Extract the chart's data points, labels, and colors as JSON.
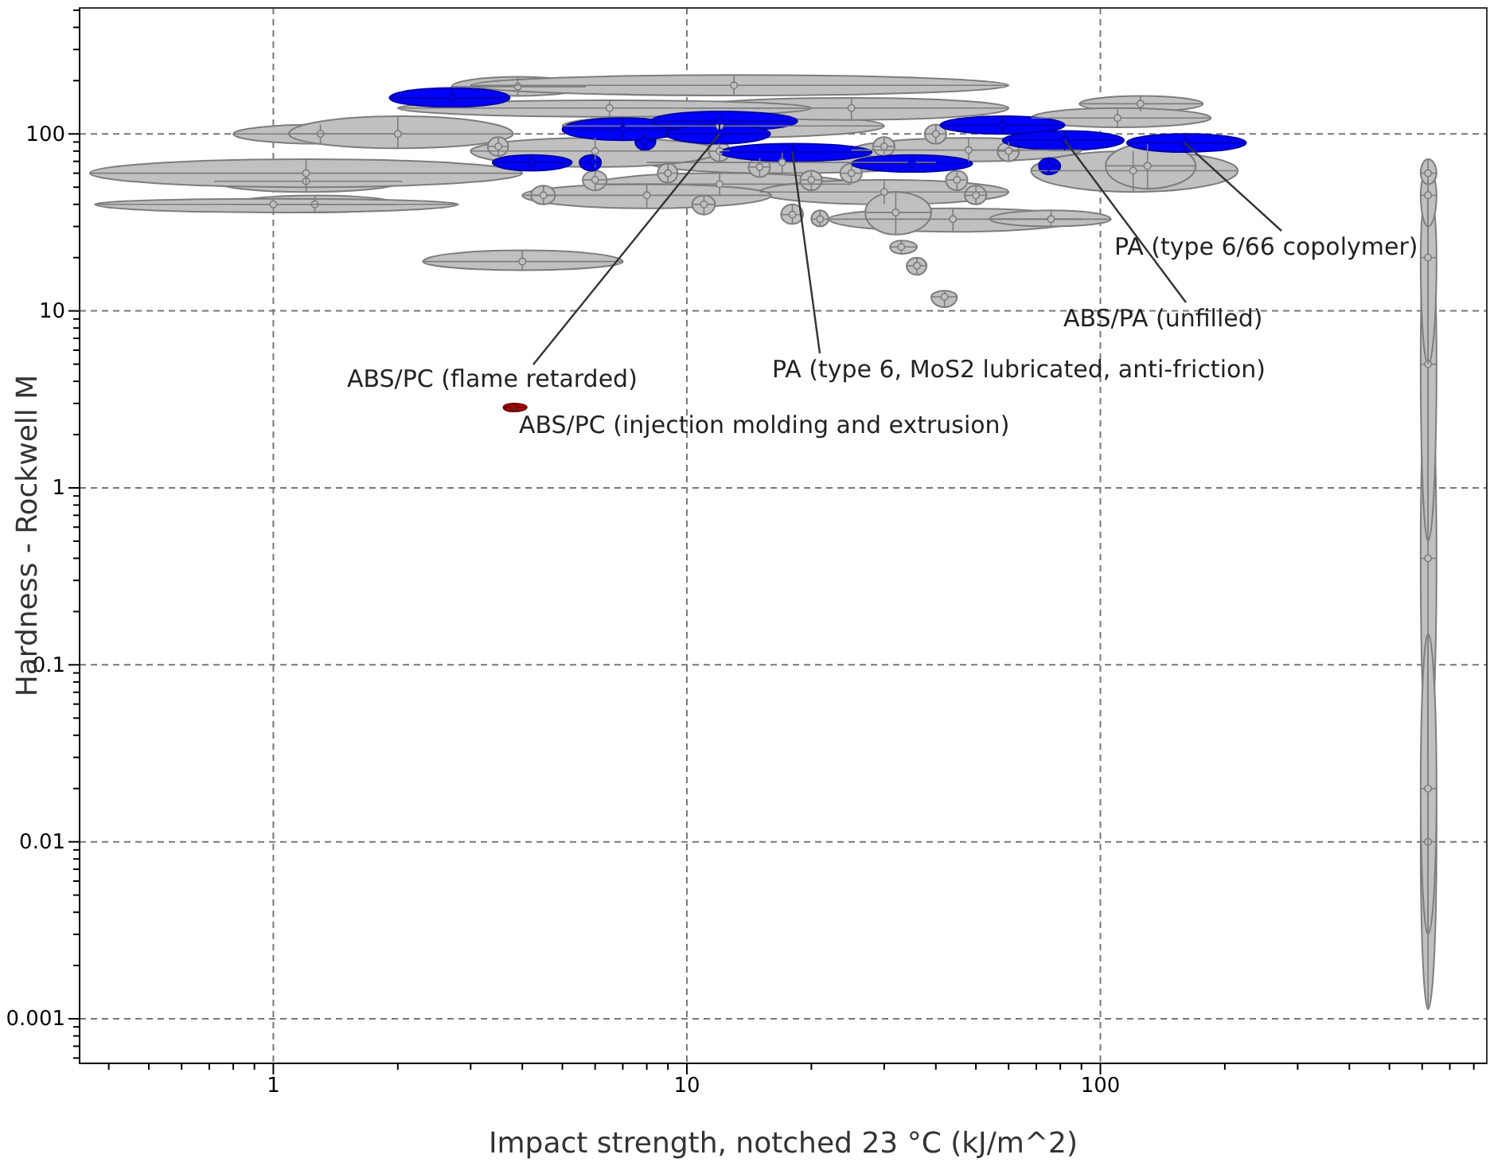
{
  "chart_data": {
    "type": "scatter",
    "xlabel": "Impact strength, notched 23 °C (kJ/m^2)",
    "ylabel": "Hardness - Rockwell M",
    "log": "xy",
    "grid": true,
    "marker": "circle",
    "xlim": [
      0.34,
      860
    ],
    "ylim": [
      0.00056,
      515
    ],
    "xticks": [
      {
        "value": 0.4,
        "label": null
      },
      {
        "value": 0.5,
        "label": null
      },
      {
        "value": 0.6,
        "label": null
      },
      {
        "value": 0.7,
        "label": null
      },
      {
        "value": 0.8,
        "label": null
      },
      {
        "value": 0.9,
        "label": null
      },
      1,
      {
        "value": 2,
        "label": null
      },
      {
        "value": 3,
        "label": null
      },
      {
        "value": 4,
        "label": null
      },
      {
        "value": 5,
        "label": null
      },
      {
        "value": 6,
        "label": null
      },
      {
        "value": 7,
        "label": null
      },
      {
        "value": 8,
        "label": null
      },
      {
        "value": 9,
        "label": null
      },
      10,
      {
        "value": 20,
        "label": null
      },
      {
        "value": 30,
        "label": null
      },
      {
        "value": 40,
        "label": null
      },
      {
        "value": 50,
        "label": null
      },
      {
        "value": 60,
        "label": null
      },
      {
        "value": 70,
        "label": null
      },
      {
        "value": 80,
        "label": null
      },
      {
        "value": 90,
        "label": null
      },
      100,
      {
        "value": 200,
        "label": null
      },
      {
        "value": 300,
        "label": null
      },
      {
        "value": 400,
        "label": null
      },
      {
        "value": 500,
        "label": null
      },
      {
        "value": 600,
        "label": null
      },
      {
        "value": 700,
        "label": null
      },
      {
        "value": 800,
        "label": null
      }
    ],
    "yticks": [
      {
        "value": 0.0006,
        "label": null
      },
      {
        "value": 0.0007,
        "label": null
      },
      {
        "value": 0.0008,
        "label": null
      },
      {
        "value": 0.0009,
        "label": null
      },
      0.001,
      {
        "value": 0.002,
        "label": null
      },
      {
        "value": 0.003,
        "label": null
      },
      {
        "value": 0.004,
        "label": null
      },
      {
        "value": 0.005,
        "label": null
      },
      {
        "value": 0.006,
        "label": null
      },
      {
        "value": 0.007,
        "label": null
      },
      {
        "value": 0.008,
        "label": null
      },
      {
        "value": 0.009,
        "label": null
      },
      0.01,
      {
        "value": 0.02,
        "label": null
      },
      {
        "value": 0.03,
        "label": null
      },
      {
        "value": 0.04,
        "label": null
      },
      {
        "value": 0.05,
        "label": null
      },
      {
        "value": 0.06,
        "label": null
      },
      {
        "value": 0.07,
        "label": null
      },
      {
        "value": 0.08,
        "label": null
      },
      {
        "value": 0.09,
        "label": null
      },
      0.1,
      {
        "value": 0.2,
        "label": null
      },
      {
        "value": 0.3,
        "label": null
      },
      {
        "value": 0.4,
        "label": null
      },
      {
        "value": 0.5,
        "label": null
      },
      {
        "value": 0.6,
        "label": null
      },
      {
        "value": 0.7,
        "label": null
      },
      {
        "value": 0.8,
        "label": null
      },
      {
        "value": 0.9,
        "label": null
      },
      1,
      {
        "value": 2,
        "label": null
      },
      {
        "value": 3,
        "label": null
      },
      {
        "value": 4,
        "label": null
      },
      {
        "value": 5,
        "label": null
      },
      {
        "value": 6,
        "label": null
      },
      {
        "value": 7,
        "label": null
      },
      {
        "value": 8,
        "label": null
      },
      {
        "value": 9,
        "label": null
      },
      10,
      {
        "value": 20,
        "label": null
      },
      {
        "value": 30,
        "label": null
      },
      {
        "value": 40,
        "label": null
      },
      {
        "value": 50,
        "label": null
      },
      {
        "value": 60,
        "label": null
      },
      {
        "value": 70,
        "label": null
      },
      {
        "value": 80,
        "label": null
      },
      {
        "value": 90,
        "label": null
      },
      100,
      {
        "value": 200,
        "label": null
      },
      {
        "value": 300,
        "label": null
      },
      {
        "value": 400,
        "label": null
      },
      {
        "value": 500,
        "label": null
      }
    ],
    "series": [
      {
        "color": "#c0c0c0",
        "x": [
          1.3,
          2.0,
          1.2,
          1.26,
          4.0,
          3.9,
          13,
          1.2,
          1.0,
          12,
          17,
          12,
          30,
          44,
          48,
          120,
          125,
          110,
          32,
          21,
          33,
          36,
          42,
          130,
          76,
          6,
          8,
          25,
          6.5,
          12,
          15,
          9,
          20,
          25,
          30,
          45,
          50,
          6,
          4.5,
          11,
          18,
          3.5,
          40,
          60,
          620,
          620,
          620,
          620,
          620,
          620,
          620
        ],
        "values": [
          100,
          100,
          54,
          40,
          19,
          185,
          188,
          60,
          40,
          111,
          69,
          52,
          47,
          33,
          81,
          62,
          148,
          123,
          36,
          33,
          23,
          18,
          12,
          66,
          33,
          80,
          45,
          140,
          140,
          80,
          65,
          60,
          55,
          60,
          85,
          55,
          45,
          55,
          45,
          40,
          35,
          85,
          100,
          80,
          0.01,
          0.4,
          5,
          20,
          45,
          60,
          0.02
        ],
        "xerrors": [
          [
            0.8,
            2.1
          ],
          [
            1.09,
            3.8
          ],
          [
            0.72,
            2.05
          ],
          [
            0.8,
            2.0
          ],
          [
            2.3,
            7.0
          ],
          [
            2.7,
            5.7
          ],
          [
            3,
            60
          ],
          [
            0.36,
            4.0
          ],
          [
            0.37,
            2.8
          ],
          [
            5,
            30
          ],
          [
            8,
            40
          ],
          [
            6,
            25
          ],
          [
            15,
            60
          ],
          [
            22,
            90
          ],
          [
            25,
            90
          ],
          [
            68,
            215
          ],
          [
            89,
            177
          ],
          [
            68,
            185
          ],
          [
            27,
            39
          ],
          [
            20,
            22
          ],
          [
            31,
            36
          ],
          [
            34,
            38
          ],
          [
            39,
            45
          ],
          [
            103,
            170
          ],
          [
            54,
            106
          ],
          [
            3,
            12
          ],
          [
            4,
            16
          ],
          [
            10,
            60
          ],
          [
            2,
            20
          ],
          [
            11.3,
            12.7
          ],
          [
            14.1,
            15.9
          ],
          [
            8.5,
            9.5
          ],
          [
            18.8,
            21.2
          ],
          [
            23.5,
            26.5
          ],
          [
            28.2,
            31.8
          ],
          [
            42.3,
            47.7
          ],
          [
            47,
            53
          ],
          [
            5.6,
            6.4
          ],
          [
            4.2,
            4.8
          ],
          [
            10.3,
            11.7
          ],
          [
            16.9,
            19.1
          ],
          [
            3.3,
            3.7
          ],
          [
            37.6,
            42.4
          ],
          [
            56.4,
            63.6
          ],
          [
            595,
            650
          ],
          [
            595,
            650
          ],
          [
            595,
            650
          ],
          [
            595,
            650
          ],
          [
            595,
            650
          ],
          [
            595,
            650
          ],
          [
            595,
            650
          ]
        ],
        "errors": [
          [
            88,
            113
          ],
          [
            83,
            126
          ],
          [
            47,
            62
          ],
          [
            36,
            45
          ],
          [
            17,
            22
          ],
          [
            164,
            210
          ],
          [
            165,
            215
          ],
          [
            50,
            72
          ],
          [
            36,
            43
          ],
          [
            95,
            130
          ],
          [
            60,
            80
          ],
          [
            45,
            60
          ],
          [
            40,
            55
          ],
          [
            28,
            38
          ],
          [
            70,
            95
          ],
          [
            47,
            80
          ],
          [
            134,
            164
          ],
          [
            109,
            140
          ],
          [
            27,
            47
          ],
          [
            30,
            37
          ],
          [
            21,
            25
          ],
          [
            16,
            20
          ],
          [
            10.5,
            13
          ],
          [
            49,
            88
          ],
          [
            30,
            37
          ],
          [
            65,
            95
          ],
          [
            38,
            52
          ],
          [
            120,
            160
          ],
          [
            125,
            155
          ],
          [
            70,
            90
          ],
          [
            57,
            73
          ],
          [
            53,
            68
          ],
          [
            48,
            62
          ],
          [
            53,
            68
          ],
          [
            75,
            96
          ],
          [
            48,
            62
          ],
          [
            40,
            51
          ],
          [
            48,
            62
          ],
          [
            40,
            51
          ],
          [
            35,
            45
          ],
          [
            31,
            40
          ],
          [
            75,
            96
          ],
          [
            88,
            113
          ],
          [
            70,
            90
          ],
          [
            0.00113,
            0.09
          ],
          [
            0.03,
            5
          ],
          [
            0.5,
            40
          ],
          [
            5,
            50
          ],
          [
            30,
            62
          ],
          [
            52,
            72
          ],
          [
            0.003,
            0.15
          ]
        ]
      },
      {
        "color": "#0000ff",
        "x": [
          2.7,
          4.2,
          5.9,
          7.9,
          7,
          12,
          12,
          18,
          35,
          58,
          82,
          160,
          75
        ],
        "values": [
          160,
          69,
          69,
          91,
          106,
          118,
          100,
          79,
          68,
          112,
          92,
          89,
          66
        ],
        "xerrors": [
          [
            1.91,
            3.73
          ],
          [
            3.39,
            5.27
          ],
          [
            5.5,
            6.2
          ],
          [
            7.5,
            8.4
          ],
          [
            5.0,
            9.7
          ],
          [
            8.2,
            18.5
          ],
          [
            8.9,
            15.9
          ],
          [
            12,
            28
          ],
          [
            25,
            49
          ],
          [
            41,
            82
          ],
          [
            58,
            114
          ],
          [
            116,
            225
          ],
          [
            71,
            80
          ]
        ],
        "errors": [
          [
            142,
            182
          ],
          [
            62,
            76
          ],
          [
            62,
            76
          ],
          [
            81,
            102
          ],
          [
            92,
            123
          ],
          [
            104,
            134
          ],
          [
            88,
            113
          ],
          [
            70,
            88
          ],
          [
            61,
            76
          ],
          [
            100,
            126
          ],
          [
            81,
            104
          ],
          [
            79,
            100
          ],
          [
            59,
            73
          ]
        ]
      },
      {
        "color": "#b00000",
        "x": [
          3.8
        ],
        "values": [
          2.85
        ],
        "xerrors": [
          [
            3.6,
            4.1
          ]
        ],
        "errors": [
          [
            2.7,
            3.0
          ]
        ]
      }
    ],
    "annotations": [
      {
        "text": "ABS/PC (flame retarded)",
        "x": 12,
        "y": 100
      },
      {
        "text": "ABS/PC (injection molding and extrusion)",
        "x": 3.8,
        "y": 2.85
      },
      {
        "text": "PA (type 6, MoS2 lubricated, anti-friction)",
        "x": 18,
        "y": 79
      },
      {
        "text": "ABS/PA (unfilled)",
        "x": 82,
        "y": 92
      },
      {
        "text": "PA (type 6/66 copolymer)",
        "x": 160,
        "y": 89
      }
    ]
  }
}
